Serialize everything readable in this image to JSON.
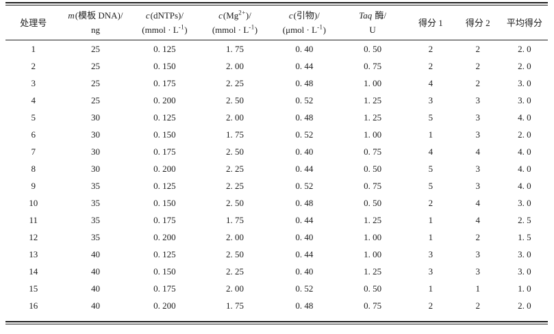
{
  "colors": {
    "background": "#ffffff",
    "text": "#1a1a1a",
    "rule": "#1a1a1a"
  },
  "header": {
    "c1": {
      "label": "处理号"
    },
    "c2": {
      "it": "m",
      "rest": "(模板 DNA)/",
      "line2": "ng"
    },
    "c3": {
      "it": "c",
      "rest": "(dNTPs)/",
      "l2pre": "(mmol · L",
      "l2sup": "-1",
      "l2post": ")"
    },
    "c4": {
      "it": "c",
      "pre": "(Mg",
      "sup": "2+",
      "post": ")/",
      "l2pre": "(mmol · L",
      "l2sup": "-1",
      "l2post": ")"
    },
    "c5": {
      "it": "c",
      "rest": "(引物)/",
      "l2pre": "(μmol · L",
      "l2sup": "-1",
      "l2post": ")"
    },
    "c6": {
      "it": "Taq",
      "rest": " 酶/",
      "line2": "U"
    },
    "c7": {
      "label": "得分 1"
    },
    "c8": {
      "label": "得分 2"
    },
    "c9": {
      "label": "平均得分"
    }
  },
  "rows": [
    [
      "1",
      "25",
      "0. 125",
      "1. 75",
      "0. 40",
      "0. 50",
      "2",
      "2",
      "2. 0"
    ],
    [
      "2",
      "25",
      "0. 150",
      "2. 00",
      "0. 44",
      "0. 75",
      "2",
      "2",
      "2. 0"
    ],
    [
      "3",
      "25",
      "0. 175",
      "2. 25",
      "0. 48",
      "1. 00",
      "4",
      "2",
      "3. 0"
    ],
    [
      "4",
      "25",
      "0. 200",
      "2. 50",
      "0. 52",
      "1. 25",
      "3",
      "3",
      "3. 0"
    ],
    [
      "5",
      "30",
      "0. 125",
      "2. 00",
      "0. 48",
      "1. 25",
      "5",
      "3",
      "4. 0"
    ],
    [
      "6",
      "30",
      "0. 150",
      "1. 75",
      "0. 52",
      "1. 00",
      "1",
      "3",
      "2. 0"
    ],
    [
      "7",
      "30",
      "0. 175",
      "2. 50",
      "0. 40",
      "0. 75",
      "4",
      "4",
      "4. 0"
    ],
    [
      "8",
      "30",
      "0. 200",
      "2. 25",
      "0. 44",
      "0. 50",
      "5",
      "3",
      "4. 0"
    ],
    [
      "9",
      "35",
      "0. 125",
      "2. 25",
      "0. 52",
      "0. 75",
      "5",
      "3",
      "4. 0"
    ],
    [
      "10",
      "35",
      "0. 150",
      "2. 50",
      "0. 48",
      "0. 50",
      "2",
      "4",
      "3. 0"
    ],
    [
      "11",
      "35",
      "0. 175",
      "1. 75",
      "0. 44",
      "1. 25",
      "1",
      "4",
      "2. 5"
    ],
    [
      "12",
      "35",
      "0. 200",
      "2. 00",
      "0. 40",
      "1. 00",
      "1",
      "2",
      "1. 5"
    ],
    [
      "13",
      "40",
      "0. 125",
      "2. 50",
      "0. 44",
      "1. 00",
      "3",
      "3",
      "3. 0"
    ],
    [
      "14",
      "40",
      "0. 150",
      "2. 25",
      "0. 40",
      "1. 25",
      "3",
      "3",
      "3. 0"
    ],
    [
      "15",
      "40",
      "0. 175",
      "2. 00",
      "0. 52",
      "0. 50",
      "1",
      "1",
      "1. 0"
    ],
    [
      "16",
      "40",
      "0. 200",
      "1. 75",
      "0. 48",
      "0. 75",
      "2",
      "2",
      "2. 0"
    ]
  ]
}
